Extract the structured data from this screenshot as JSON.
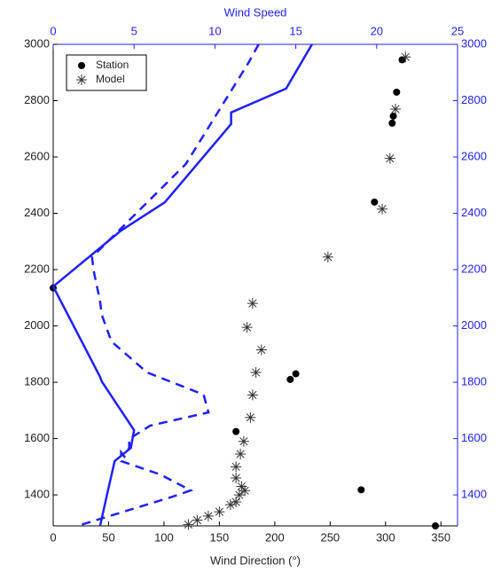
{
  "chart_data": {
    "type": "line",
    "title": "Wind Speed",
    "x_label": "Wind Direction (°)",
    "xlim": [
      0,
      365
    ],
    "xticks": [
      0,
      50,
      100,
      150,
      200,
      250,
      300,
      350
    ],
    "x2lim": [
      0,
      25
    ],
    "x2ticks": [
      0,
      5,
      10,
      15,
      20,
      25
    ],
    "ylim": [
      1290,
      3000
    ],
    "yticks": [
      1400,
      1600,
      1800,
      2000,
      2200,
      2400,
      2600,
      2800,
      3000
    ],
    "y2lim": [
      1290,
      3000
    ],
    "y2ticks": [
      1400,
      1600,
      1800,
      2000,
      2200,
      2400,
      2600,
      2800,
      3000
    ],
    "legend": "upper left",
    "series": [
      {
        "name": "Station",
        "marker": "dot",
        "color": "#000000",
        "x": [
          315,
          310,
          307,
          306,
          290,
          219,
          214,
          165,
          278,
          345,
          0
        ],
        "y": [
          2945,
          2830,
          2745,
          2720,
          2440,
          1830,
          1810,
          1625,
          1418,
          1290,
          2135
        ]
      },
      {
        "name": "Model",
        "marker": "star",
        "color": "#333333",
        "x": [
          318,
          309,
          304,
          297,
          248,
          180,
          175,
          188,
          183,
          180,
          178,
          172,
          169,
          165,
          165,
          170,
          173,
          168,
          165,
          160,
          150,
          140,
          130,
          122
        ],
        "y": [
          2955,
          2770,
          2595,
          2415,
          2245,
          2080,
          1995,
          1915,
          1835,
          1755,
          1675,
          1590,
          1545,
          1500,
          1460,
          1430,
          1415,
          1400,
          1375,
          1365,
          1340,
          1325,
          1310,
          1295
        ]
      },
      {
        "style": "solid",
        "axis": "x2",
        "color": "#1f1fff",
        "x": [
          16.0,
          14.4,
          11.0,
          11.0,
          6.9,
          4.2,
          0,
          2.9,
          3.0,
          5.0,
          4.8,
          3.8,
          3.3,
          2.9
        ],
        "y": [
          3000,
          2843,
          2758,
          2717,
          2439,
          2339,
          2140,
          1819,
          1803,
          1630,
          1567,
          1520,
          1394,
          1290
        ]
      },
      {
        "style": "dashed",
        "axis": "x2",
        "color": "#1f1fff",
        "x": [
          12.7,
          12.1,
          8.2,
          2.4,
          2.5,
          2.9,
          3.0,
          3.6,
          5.8,
          9.3,
          9.6,
          6.0,
          4.7,
          4.7,
          4.4,
          4.2,
          4.2,
          6.6,
          8.5,
          7.4,
          1.5
        ],
        "y": [
          3000,
          2937,
          2575,
          2244,
          2197,
          2087,
          2040,
          1945,
          1835,
          1756,
          1693,
          1646,
          1599,
          1567,
          1536,
          1551,
          1520,
          1473,
          1416,
          1394,
          1290
        ]
      }
    ]
  }
}
